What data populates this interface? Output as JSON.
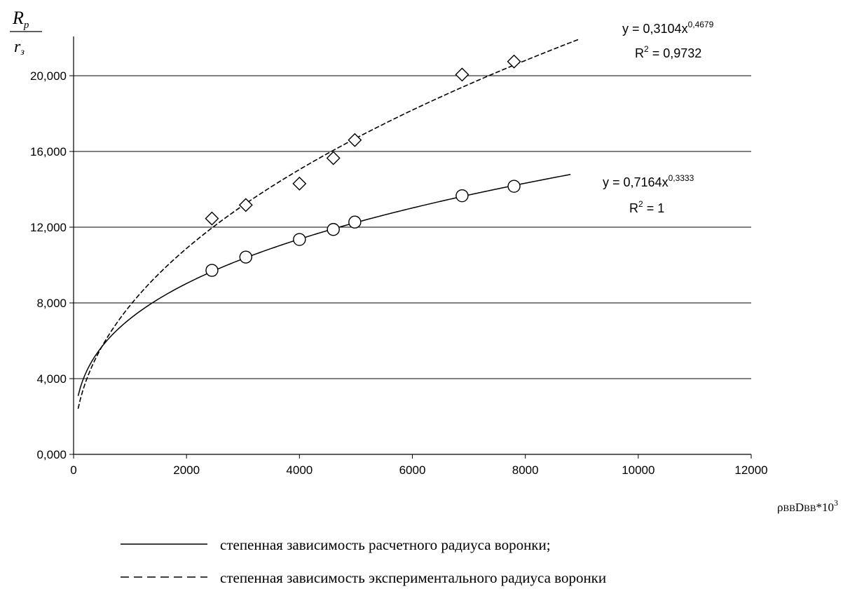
{
  "chart_data": {
    "type": "scatter",
    "ylabel_numerator": "R",
    "ylabel_numerator_sub": "p",
    "ylabel_denominator": "r",
    "ylabel_denominator_sub": "з",
    "xlabel_parts": [
      "ρ",
      "BB",
      "D",
      "BB",
      "*10",
      "3"
    ],
    "xlim": [
      0,
      12000
    ],
    "ylim": [
      0,
      22000
    ],
    "xticks": [
      0,
      2000,
      4000,
      6000,
      8000,
      10000,
      12000
    ],
    "xtick_labels": [
      "0",
      "2000",
      "4000",
      "6000",
      "8000",
      "10000",
      "12000"
    ],
    "yticks": [
      0,
      4000,
      8000,
      12000,
      16000,
      20000
    ],
    "ytick_labels": [
      "0,000",
      "4,000",
      "8,000",
      "12,000",
      "16,000",
      "20,000"
    ],
    "grid": "horizontal",
    "series": [
      {
        "marker": "circle",
        "line_style": "solid",
        "x": [
          2450,
          3050,
          4000,
          4600,
          4980,
          6880,
          7800
        ],
        "y": [
          9720,
          10420,
          11350,
          11880,
          12270,
          13660,
          14160
        ],
        "trend": {
          "a": 0.7164,
          "b": 0.3333,
          "x_from": 80,
          "x_to": 8800,
          "scale": 1000
        },
        "equation_parts": [
          "y = 0,7164x",
          "0,3333"
        ],
        "r2_parts": [
          "R",
          "2",
          " = 1"
        ]
      },
      {
        "marker": "diamond",
        "line_style": "dashed",
        "x": [
          2450,
          3050,
          4000,
          4600,
          4980,
          6880,
          7800
        ],
        "y": [
          12460,
          13170,
          14300,
          15650,
          16600,
          20060,
          20750
        ],
        "trend": {
          "a": 0.3104,
          "b": 0.4679,
          "x_from": 80,
          "x_to": 8950,
          "scale": 1000
        },
        "equation_parts": [
          "y = 0,3104x",
          "0,4679"
        ],
        "r2_parts": [
          "R",
          "2",
          " = 0,9732"
        ]
      }
    ],
    "legend": [
      {
        "style": "solid",
        "label": "степенная зависимость расчетного радиуса воронки;"
      },
      {
        "style": "dashed",
        "label": "степенная зависимость экспериментального радиуса воронки"
      }
    ]
  }
}
